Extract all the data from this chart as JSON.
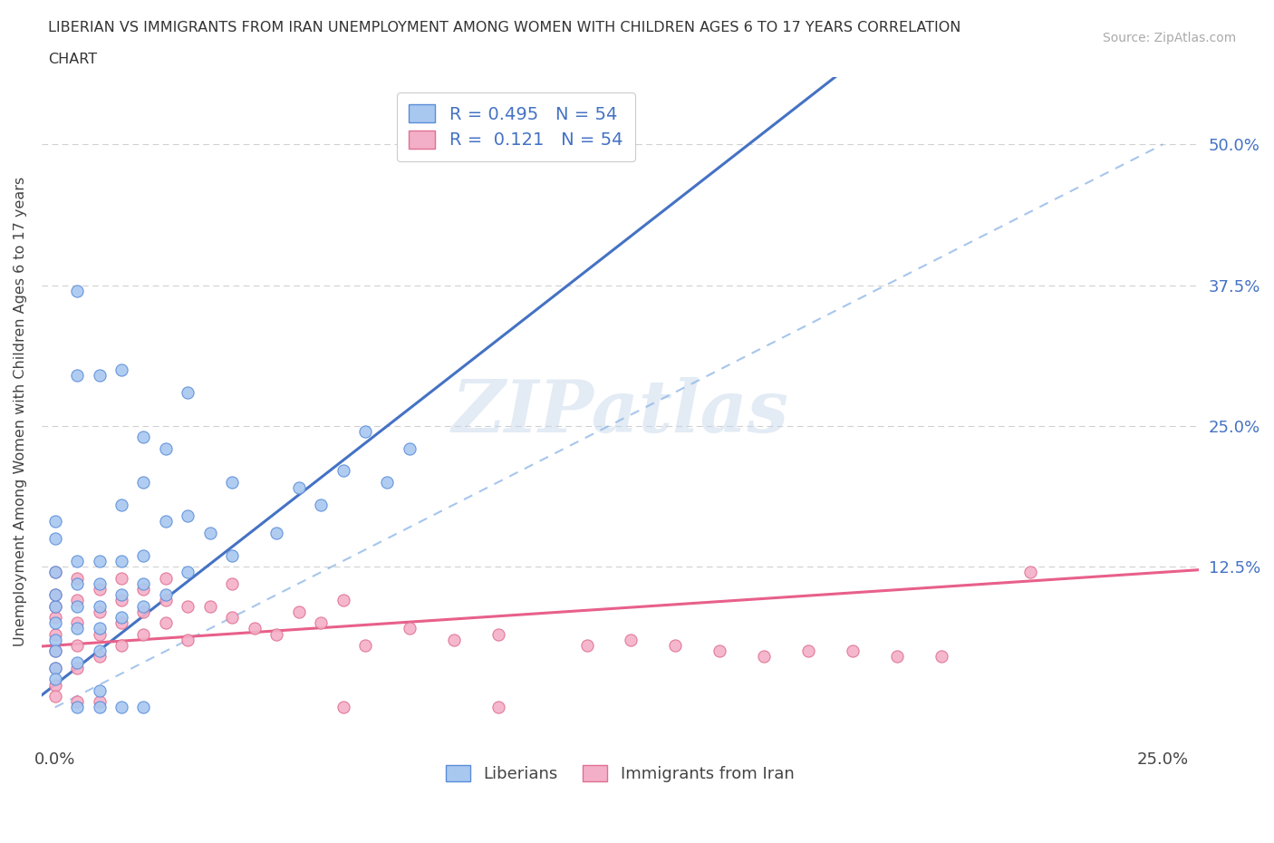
{
  "title_line1": "LIBERIAN VS IMMIGRANTS FROM IRAN UNEMPLOYMENT AMONG WOMEN WITH CHILDREN AGES 6 TO 17 YEARS CORRELATION",
  "title_line2": "CHART",
  "source_text": "Source: ZipAtlas.com",
  "ylabel": "Unemployment Among Women with Children Ages 6 to 17 years",
  "xlim": [
    -0.003,
    0.258
  ],
  "ylim": [
    -0.035,
    0.56
  ],
  "xtick_labels": [
    "0.0%",
    "25.0%"
  ],
  "xtick_positions": [
    0.0,
    0.25
  ],
  "ytick_positions": [
    0.125,
    0.25,
    0.375,
    0.5
  ],
  "ytick_labels_right": [
    "12.5%",
    "25.0%",
    "37.5%",
    "50.0%"
  ],
  "liberian_color": "#a8c8f0",
  "iran_color": "#f4afc8",
  "liberian_edge_color": "#5b8dd9",
  "iran_edge_color": "#e07090",
  "liberian_line_color": "#4472c4",
  "iran_line_color": "#e8608a",
  "diag_line_color": "#90b8e8",
  "right_tick_color": "#4472c4",
  "watermark": "ZIPatlas",
  "grid_color": "#d0d0d0",
  "background_color": "#ffffff",
  "liberian_x": [
    0.0,
    0.0,
    0.0,
    0.0,
    0.0,
    0.0,
    0.0,
    0.0,
    0.005,
    0.005,
    0.005,
    0.005,
    0.005,
    0.005,
    0.01,
    0.01,
    0.01,
    0.01,
    0.01,
    0.01,
    0.015,
    0.015,
    0.015,
    0.015,
    0.02,
    0.02,
    0.02,
    0.02,
    0.025,
    0.025,
    0.03,
    0.03,
    0.035,
    0.04,
    0.04,
    0.05,
    0.055,
    0.06,
    0.065,
    0.07,
    0.075,
    0.08,
    0.015,
    0.02,
    0.025,
    0.005,
    0.01,
    0.03,
    0.01,
    0.02,
    0.015,
    0.005,
    0.0,
    0.0
  ],
  "liberian_y": [
    0.06,
    0.075,
    0.09,
    0.1,
    0.12,
    0.05,
    0.035,
    0.025,
    0.0,
    0.04,
    0.07,
    0.09,
    0.11,
    0.13,
    0.05,
    0.07,
    0.09,
    0.11,
    0.13,
    0.015,
    0.08,
    0.1,
    0.13,
    0.18,
    0.09,
    0.11,
    0.135,
    0.2,
    0.1,
    0.165,
    0.12,
    0.17,
    0.155,
    0.135,
    0.2,
    0.155,
    0.195,
    0.18,
    0.21,
    0.245,
    0.2,
    0.23,
    0.3,
    0.24,
    0.23,
    0.295,
    0.295,
    0.28,
    0.0,
    0.0,
    0.0,
    0.37,
    0.165,
    0.15
  ],
  "iran_x": [
    0.0,
    0.0,
    0.0,
    0.0,
    0.0,
    0.0,
    0.0,
    0.0,
    0.0,
    0.005,
    0.005,
    0.005,
    0.005,
    0.005,
    0.005,
    0.01,
    0.01,
    0.01,
    0.01,
    0.01,
    0.015,
    0.015,
    0.015,
    0.015,
    0.02,
    0.02,
    0.02,
    0.025,
    0.025,
    0.025,
    0.03,
    0.03,
    0.035,
    0.04,
    0.04,
    0.045,
    0.05,
    0.055,
    0.06,
    0.065,
    0.07,
    0.08,
    0.09,
    0.1,
    0.12,
    0.13,
    0.14,
    0.15,
    0.16,
    0.17,
    0.18,
    0.19,
    0.2,
    0.22,
    0.065,
    0.1
  ],
  "iran_y": [
    0.05,
    0.065,
    0.08,
    0.09,
    0.1,
    0.12,
    0.035,
    0.02,
    0.01,
    0.035,
    0.055,
    0.075,
    0.095,
    0.115,
    0.005,
    0.045,
    0.065,
    0.085,
    0.105,
    0.005,
    0.055,
    0.075,
    0.095,
    0.115,
    0.065,
    0.085,
    0.105,
    0.075,
    0.095,
    0.115,
    0.06,
    0.09,
    0.09,
    0.08,
    0.11,
    0.07,
    0.065,
    0.085,
    0.075,
    0.095,
    0.055,
    0.07,
    0.06,
    0.065,
    0.055,
    0.06,
    0.055,
    0.05,
    0.045,
    0.05,
    0.05,
    0.045,
    0.045,
    0.12,
    0.0,
    0.0
  ]
}
